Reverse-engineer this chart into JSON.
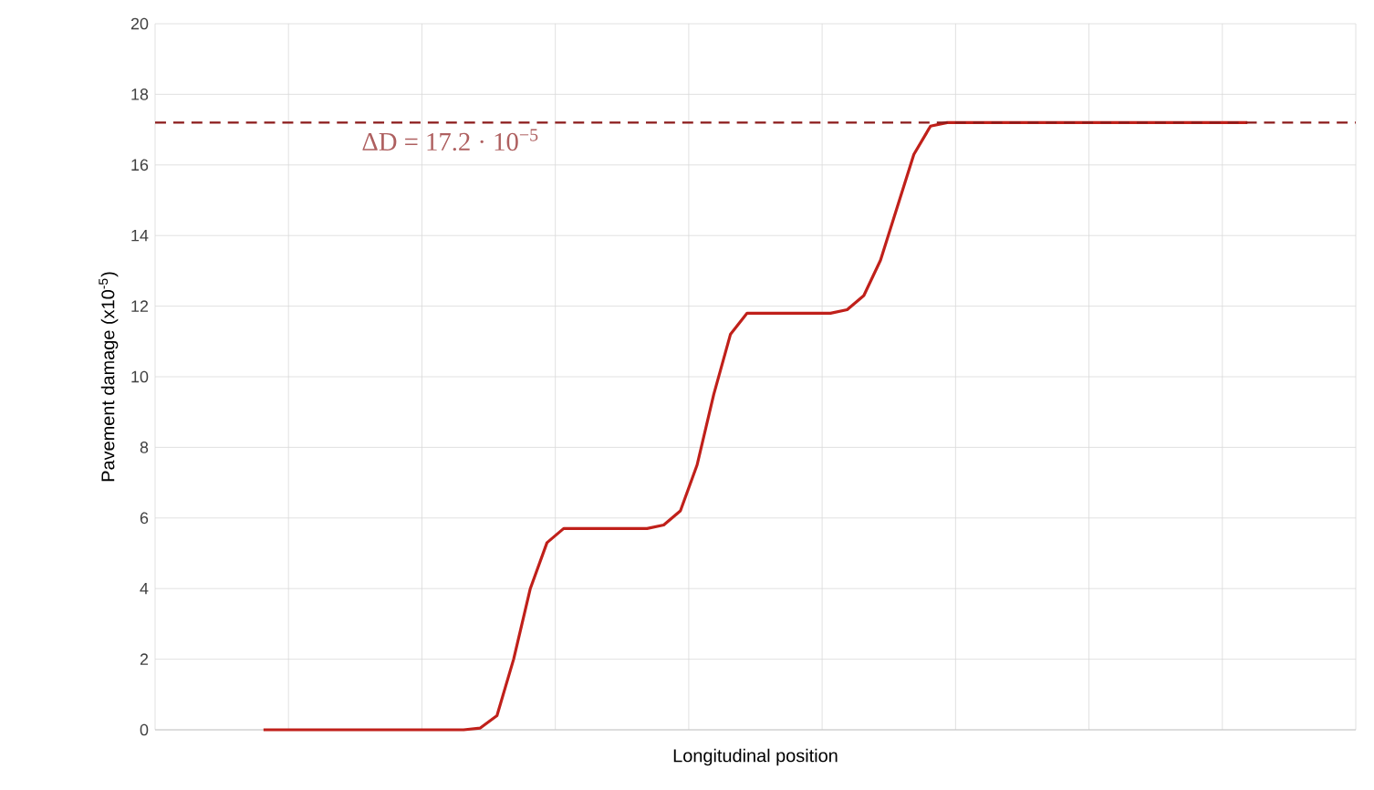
{
  "chart_data": {
    "type": "line",
    "xlabel": "Longitudinal position",
    "ylabel": "Pavement damage (x10$^{-5}$)",
    "categories": [
      null,
      null,
      null,
      null,
      null,
      null,
      null,
      null,
      null,
      null,
      null,
      null,
      null,
      null,
      null,
      null,
      null,
      null,
      null,
      null,
      null,
      null,
      null,
      null,
      null,
      null,
      null,
      null,
      null,
      null,
      null,
      null,
      null,
      null,
      null,
      null,
      null,
      null,
      null,
      null,
      null,
      null,
      null,
      null,
      null,
      null,
      null,
      null,
      null,
      null,
      null,
      null,
      null,
      null,
      null,
      null,
      null,
      null,
      null,
      null,
      null,
      null,
      null,
      null,
      null,
      null,
      null,
      null,
      null,
      null,
      null,
      null
    ],
    "series": [
      {
        "color": "#c0201a",
        "values": [
          null,
          null,
          null,
          null,
          null,
          null,
          0,
          0,
          0,
          0,
          0,
          0,
          0,
          0,
          0,
          0,
          0,
          0,
          0,
          0.05,
          0.4,
          2.0,
          4.0,
          5.3,
          5.7,
          5.7,
          5.7,
          5.7,
          5.7,
          5.7,
          5.8,
          6.2,
          7.5,
          9.5,
          11.2,
          11.8,
          11.8,
          11.8,
          11.8,
          11.8,
          11.8,
          11.9,
          12.3,
          13.3,
          14.8,
          16.3,
          17.1,
          17.2,
          17.2,
          17.2,
          17.2,
          17.2,
          17.2,
          17.2,
          17.2,
          17.2,
          17.2,
          17.2,
          17.2,
          17.2,
          17.2,
          17.2,
          17.2,
          17.2,
          17.2,
          17.2,
          null,
          null,
          null,
          null,
          null,
          null
        ]
      }
    ],
    "ylim": [
      0,
      20
    ],
    "yticks": [
      0,
      2,
      4,
      6,
      8,
      10,
      12,
      14,
      16,
      18,
      20
    ],
    "grid": true,
    "line_style": "solid",
    "marker": "none",
    "ref_lines": [
      {
        "axis": "y",
        "value": 17.2,
        "label": "ΔD = 17.2 · 10$^{−5}$",
        "color": "#8b1a1a",
        "line_style": "dashed"
      }
    ]
  }
}
